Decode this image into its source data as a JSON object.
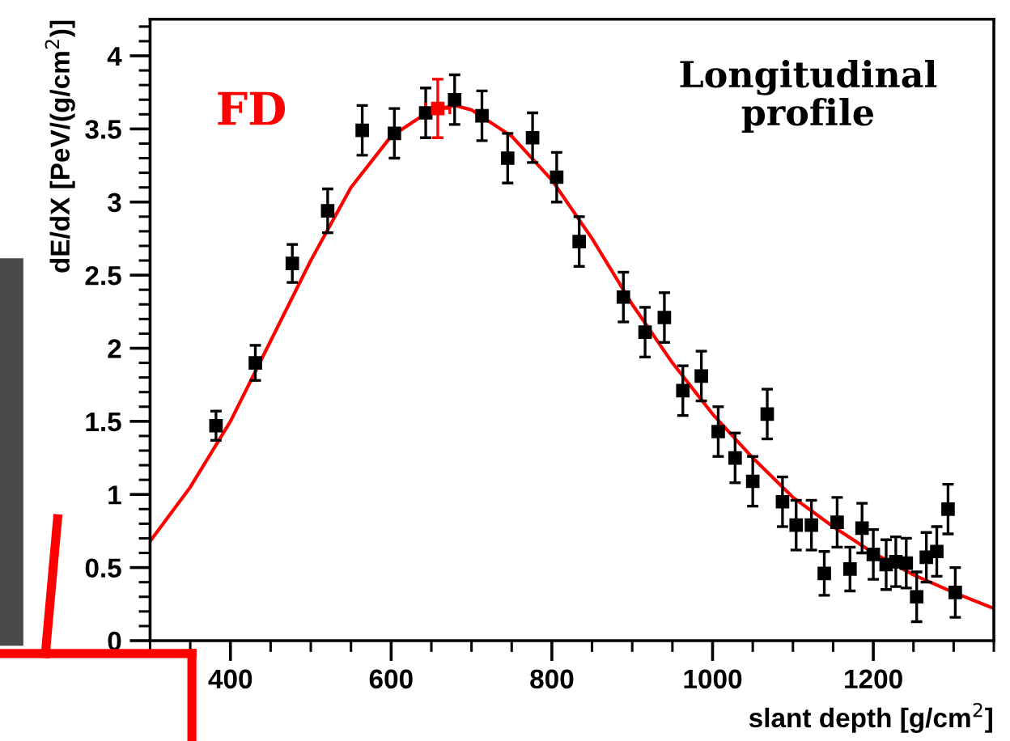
{
  "chart_data": {
    "type": "scatter",
    "xlabel": "slant depth [g/cm$^{2}$]",
    "ylabel": "dE/dX [PeV/(g/cm$^{2}$)]",
    "xlim": [
      300,
      1350
    ],
    "xticks": [
      400,
      600,
      800,
      1000,
      1200
    ],
    "ylim": [
      0,
      4.25
    ],
    "yticks": [
      0,
      0.5,
      1,
      1.5,
      2,
      2.5,
      3,
      3.5,
      4
    ],
    "grid": false,
    "marker": "square",
    "annotations": [
      "FD",
      "Longitudinal profile"
    ],
    "series": [
      {
        "color": "#000000",
        "x": [
          382,
          431,
          477,
          521,
          564,
          604,
          643,
          679,
          713,
          745,
          776,
          806,
          834,
          889,
          916,
          940,
          963,
          986,
          1007,
          1028,
          1050,
          1068,
          1087,
          1104,
          1123,
          1139,
          1155,
          1171,
          1186,
          1200,
          1216,
          1228,
          1241,
          1254,
          1266,
          1279,
          1293,
          1302
        ],
        "values": [
          1.47,
          1.9,
          2.58,
          2.94,
          3.49,
          3.47,
          3.61,
          3.7,
          3.59,
          3.3,
          3.44,
          3.17,
          2.73,
          2.35,
          2.11,
          2.21,
          1.71,
          1.81,
          1.43,
          1.25,
          1.09,
          1.55,
          0.95,
          0.79,
          0.79,
          0.46,
          0.81,
          0.49,
          0.77,
          0.59,
          0.52,
          0.54,
          0.53,
          0.3,
          0.57,
          0.61,
          0.9,
          0.33
        ],
        "errors": [
          0.1,
          0.12,
          0.13,
          0.15,
          0.17,
          0.17,
          0.17,
          0.17,
          0.17,
          0.17,
          0.17,
          0.17,
          0.17,
          0.17,
          0.17,
          0.17,
          0.17,
          0.17,
          0.17,
          0.17,
          0.17,
          0.17,
          0.17,
          0.17,
          0.17,
          0.15,
          0.17,
          0.15,
          0.17,
          0.17,
          0.17,
          0.17,
          0.17,
          0.17,
          0.17,
          0.17,
          0.17,
          0.17
        ]
      },
      {
        "color": "#ff0000",
        "x": [
          658
        ],
        "values": [
          3.64
        ],
        "errors": [
          0.2
        ],
        "xerrors": [
          15
        ]
      },
      {
        "type": "line",
        "color": "#ff0000",
        "marker": "none",
        "x": [
          300,
          350,
          400,
          450,
          500,
          550,
          600,
          650,
          680,
          700,
          750,
          800,
          850,
          900,
          950,
          1000,
          1050,
          1100,
          1150,
          1200,
          1250,
          1300,
          1350
        ],
        "values": [
          0.68,
          1.05,
          1.5,
          2.05,
          2.6,
          3.1,
          3.45,
          3.63,
          3.66,
          3.63,
          3.45,
          3.15,
          2.75,
          2.3,
          1.9,
          1.55,
          1.25,
          0.98,
          0.78,
          0.6,
          0.45,
          0.33,
          0.22
        ]
      }
    ]
  }
}
